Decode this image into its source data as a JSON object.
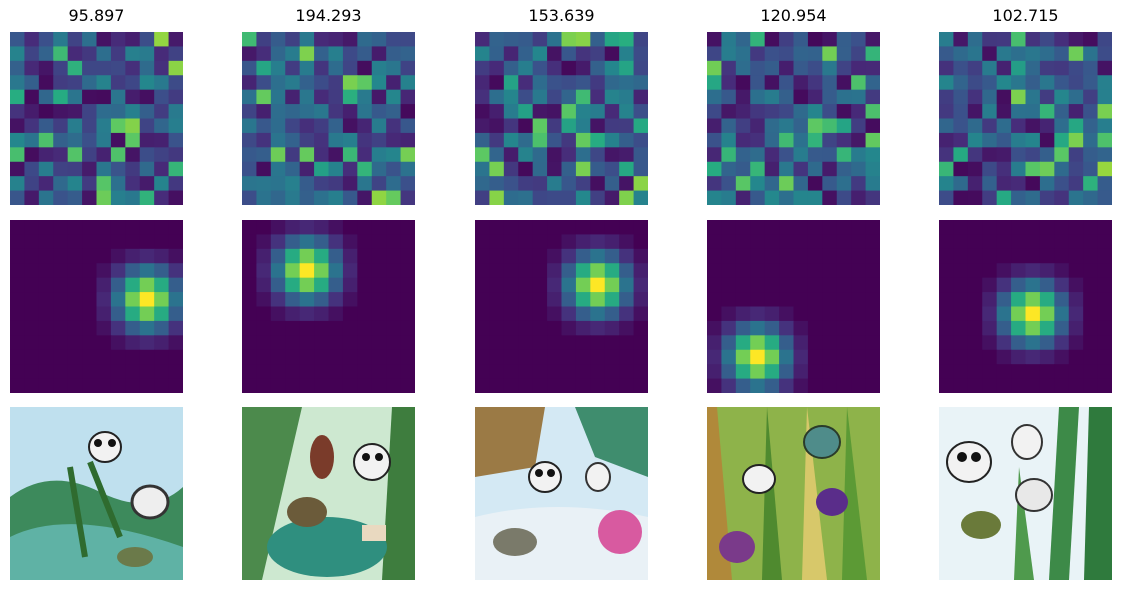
{
  "figure": {
    "titles": [
      "95.897",
      "194.293",
      "153.639",
      "120.954",
      "102.715"
    ]
  },
  "colors": {
    "viridis_dark": "#440154",
    "viridis_yellow": "#fde725",
    "viridis_green": "#35b779",
    "viridis_teal": "#21918c",
    "viridis_blue": "#3b528b"
  },
  "chart_data": [
    {
      "type": "heatmap",
      "panel": "attention-map",
      "column": 1,
      "grid": [
        12,
        12
      ],
      "colormap": "viridis"
    },
    {
      "type": "heatmap",
      "panel": "attention-map",
      "column": 2,
      "grid": [
        12,
        12
      ],
      "colormap": "viridis"
    },
    {
      "type": "heatmap",
      "panel": "attention-map",
      "column": 3,
      "grid": [
        12,
        12
      ],
      "colormap": "viridis"
    },
    {
      "type": "heatmap",
      "panel": "attention-map",
      "column": 4,
      "grid": [
        12,
        12
      ],
      "colormap": "viridis"
    },
    {
      "type": "heatmap",
      "panel": "attention-map",
      "column": 5,
      "grid": [
        12,
        12
      ],
      "colormap": "viridis"
    },
    {
      "type": "heatmap",
      "panel": "gaussian-map",
      "column": 1,
      "grid": [
        12,
        12
      ],
      "colormap": "viridis",
      "peak_cell": [
        9,
        5
      ]
    },
    {
      "type": "heatmap",
      "panel": "gaussian-map",
      "column": 2,
      "grid": [
        12,
        12
      ],
      "colormap": "viridis",
      "peak_cell": [
        4,
        3
      ]
    },
    {
      "type": "heatmap",
      "panel": "gaussian-map",
      "column": 3,
      "grid": [
        12,
        12
      ],
      "colormap": "viridis",
      "peak_cell": [
        8,
        4
      ]
    },
    {
      "type": "heatmap",
      "panel": "gaussian-map",
      "column": 4,
      "grid": [
        12,
        12
      ],
      "colormap": "viridis",
      "peak_cell": [
        3,
        9
      ]
    },
    {
      "type": "heatmap",
      "panel": "gaussian-map",
      "column": 5,
      "grid": [
        12,
        12
      ],
      "colormap": "viridis",
      "peak_cell": [
        6,
        6
      ]
    }
  ]
}
